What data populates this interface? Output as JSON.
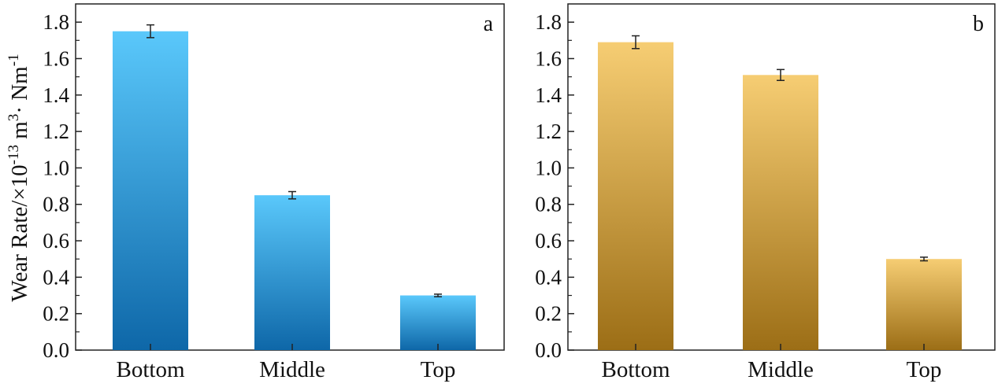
{
  "figure": {
    "ylabel": {
      "base": "Wear Rate/×10",
      "exp1": "-13",
      "mid": " m",
      "exp2": "3",
      "mid2": "· Nm",
      "exp3": "-1"
    }
  },
  "chart_data": [
    {
      "type": "bar",
      "panel_label": "a",
      "categories": [
        "Bottom",
        "Middle",
        "Top"
      ],
      "values": [
        1.75,
        0.85,
        0.3
      ],
      "errors": [
        0.035,
        0.02,
        0.007
      ],
      "ylim": [
        0,
        1.9
      ],
      "yticks": [
        "0.0",
        "0.2",
        "0.4",
        "0.6",
        "0.8",
        "1.0",
        "1.2",
        "1.4",
        "1.6",
        "1.8"
      ],
      "ytick_values": [
        0,
        0.2,
        0.4,
        0.6,
        0.8,
        1.0,
        1.2,
        1.4,
        1.6,
        1.8
      ],
      "colors": {
        "top": "#5ac8fb",
        "bottom": "#0e67a8"
      },
      "grid": false
    },
    {
      "type": "bar",
      "panel_label": "b",
      "categories": [
        "Bottom",
        "Middle",
        "Top"
      ],
      "values": [
        1.69,
        1.51,
        0.5
      ],
      "errors": [
        0.035,
        0.03,
        0.01
      ],
      "ylim": [
        0,
        1.9
      ],
      "yticks": [
        "0.0",
        "0.2",
        "0.4",
        "0.6",
        "0.8",
        "1.0",
        "1.2",
        "1.4",
        "1.6",
        "1.8"
      ],
      "ytick_values": [
        0,
        0.2,
        0.4,
        0.6,
        0.8,
        1.0,
        1.2,
        1.4,
        1.6,
        1.8
      ],
      "colors": {
        "top": "#f6cd73",
        "bottom": "#9c6e16"
      },
      "grid": false
    }
  ]
}
